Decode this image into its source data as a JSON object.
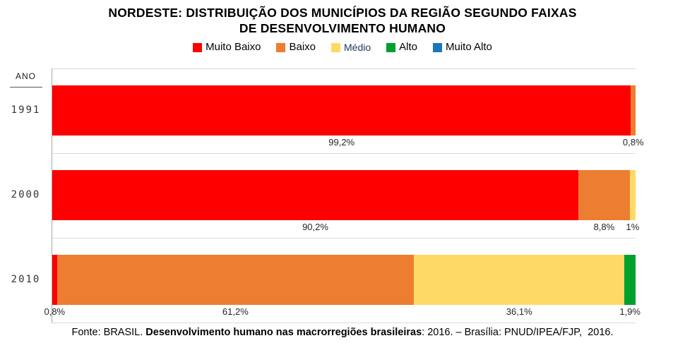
{
  "title_lines": [
    "NORDESTE: DISTRIBUIÇÃO DOS MUNICÍPIOS DA REGIÃO SEGUNDO FAIXAS",
    "DE DESENVOLVIMENTO HUMANO"
  ],
  "legend": {
    "items": [
      {
        "label": "Muito Baixo",
        "color": "#FE0000",
        "label_color": "#000000"
      },
      {
        "label": "Baixo",
        "color": "#ED7D31",
        "label_color": "#000000"
      },
      {
        "label": "Médio",
        "color": "#FFD966",
        "label_color": "#1F3864"
      },
      {
        "label": "Alto",
        "color": "#00A02F",
        "label_color": "#000000"
      },
      {
        "label": "Muito Alto",
        "color": "#1B75BC",
        "label_color": "#000000"
      }
    ]
  },
  "axis": {
    "header": "ANO",
    "years": [
      "1991",
      "2000",
      "2010"
    ]
  },
  "chart_data": {
    "type": "bar",
    "stacked": true,
    "orientation": "horizontal",
    "title": "NORDESTE: DISTRIBUIÇÃO DOS MUNICÍPIOS DA REGIÃO SEGUNDO FAIXAS DE DESENVOLVIMENTO HUMANO",
    "xlabel": "",
    "ylabel": "ANO",
    "xlim": [
      0,
      100
    ],
    "value_unit": "%",
    "grid": "category-boundaries",
    "legend_position": "top",
    "categories": [
      "1991",
      "2000",
      "2010"
    ],
    "series": [
      {
        "name": "Muito Baixo",
        "color": "#FE0000",
        "values": [
          99.2,
          90.2,
          0.8
        ]
      },
      {
        "name": "Baixo",
        "color": "#ED7D31",
        "values": [
          0.8,
          8.8,
          61.2
        ]
      },
      {
        "name": "Médio",
        "color": "#FFD966",
        "values": [
          0,
          1.0,
          36.1
        ]
      },
      {
        "name": "Alto",
        "color": "#00A02F",
        "values": [
          0,
          0,
          1.9
        ]
      },
      {
        "name": "Muito Alto",
        "color": "#1B75BC",
        "values": [
          0,
          0,
          0
        ]
      }
    ],
    "value_labels": [
      [
        "99,2%",
        "0,8%",
        "",
        "",
        ""
      ],
      [
        "90,2%",
        "8,8%",
        "1%",
        "",
        ""
      ],
      [
        "0,8%",
        "61,2%",
        "36,1%",
        "1,9%",
        ""
      ]
    ]
  },
  "footer": {
    "prefix": "Fonte: BRASIL. ",
    "bold": "Desenvolvimento humano nas macrorregiões brasileiras",
    "suffix": ": 2016. – Brasília: PNUD/IPEA/FJP,  2016."
  }
}
